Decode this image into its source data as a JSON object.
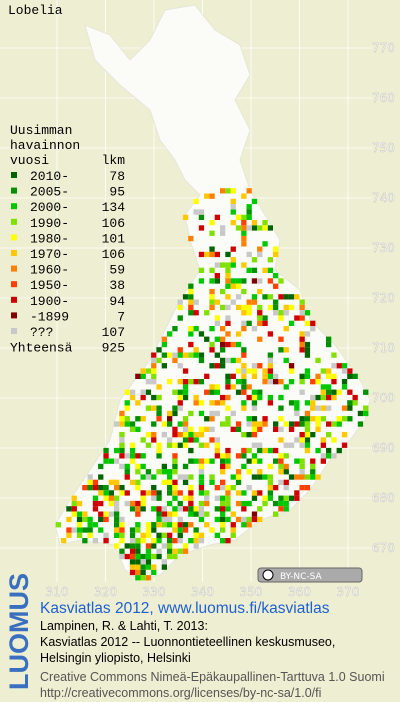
{
  "map": {
    "title": "Lobelia",
    "legend": {
      "header": [
        "Uusimman",
        "havainnon",
        "vuosi"
      ],
      "count_header": "lkm",
      "entries": [
        {
          "label": "2010-",
          "count": "78",
          "color": "#006400"
        },
        {
          "label": "2005-",
          "count": "95",
          "color": "#009000"
        },
        {
          "label": "2000-",
          "count": "134",
          "color": "#00c800"
        },
        {
          "label": "1990-",
          "count": "106",
          "color": "#80e000"
        },
        {
          "label": "1980-",
          "count": "101",
          "color": "#ffff00"
        },
        {
          "label": "1970-",
          "count": "106",
          "color": "#ffc800"
        },
        {
          "label": "1960-",
          "count": "59",
          "color": "#ff8000"
        },
        {
          "label": "1950-",
          "count": "38",
          "color": "#ff4000"
        },
        {
          "label": "1900-",
          "count": "94",
          "color": "#d00000"
        },
        {
          "label": "-1899",
          "count": "7",
          "color": "#800000"
        },
        {
          "label": "???",
          "count": "107",
          "color": "#c8c8c8"
        }
      ],
      "total_label": "Yhteensä",
      "total": "925"
    },
    "yticks": [
      770,
      760,
      750,
      740,
      730,
      720,
      710,
      700,
      690,
      680,
      670
    ],
    "xticks": [
      310,
      320,
      330,
      340,
      350,
      360,
      370
    ],
    "license_badge": "BY-NC-SA",
    "footer": {
      "logo": "LUOMUS",
      "headline": "Kasviatlas 2012, www.luomus.fi/kasviatlas",
      "citation": [
        "Lampinen, R. & Lahti, T. 2013:",
        "Kasviatlas 2012 -- Luonnontieteellinen keskusmuseo,",
        "Helsingin yliopisto, Helsinki"
      ],
      "license": [
        "Creative Commons Nimeä-Epäkaupallinen-Tarttuva 1.0 Suomi",
        "http://creativecommons.org/licenses/by-nc-sa/1.0/fi"
      ]
    }
  }
}
